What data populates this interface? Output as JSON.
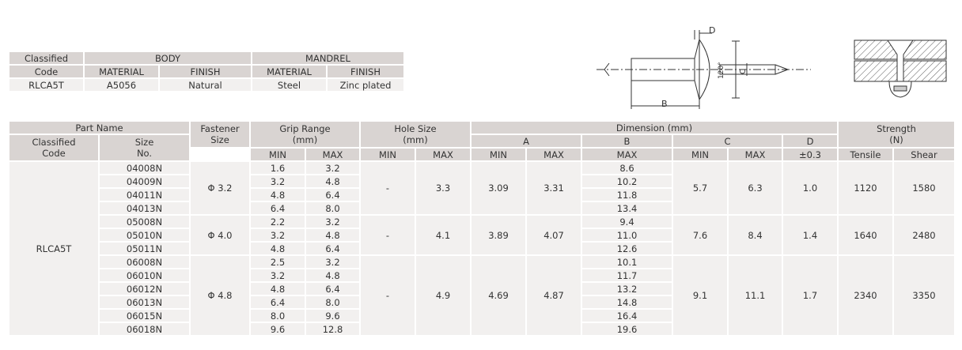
{
  "material_table": {
    "h_classified": "Classified",
    "h_code": "Code",
    "h_body": "BODY",
    "h_mandrel": "MANDREL",
    "h_body_material": "MATERIAL",
    "h_body_finish": "FINISH",
    "h_mandrel_material": "MATERIAL",
    "h_mandrel_finish": "FINISH",
    "code": "RLCA5T",
    "body_material": "A5056",
    "body_finish": "Natural",
    "mandrel_material": "Steel",
    "mandrel_finish": "Zinc plated"
  },
  "diagram": {
    "label_d": "D",
    "label_b": "B",
    "label_c": "C",
    "label_angle": "120°"
  },
  "spec_table": {
    "h_part_name": "Part Name",
    "h_classified_code": "Classified\nCode",
    "h_size_no": "Size\nNo.",
    "h_fastener_size": "Fastener\nSize",
    "h_grip_range": "Grip Range\n(mm)",
    "h_hole_size": "Hole Size\n(mm)",
    "h_dimension": "Dimension (mm)",
    "h_a": "A",
    "h_b": "B",
    "h_c": "C",
    "h_d": "D",
    "h_strength": "Strength\n(N)",
    "h_min": "MIN",
    "h_max": "MAX",
    "h_tol": "±0.3",
    "h_tensile": "Tensile",
    "h_shear": "Shear",
    "code": "RLCA5T",
    "groups": [
      {
        "fastener": "Φ 3.2",
        "hole_min": "-",
        "hole_max": "3.3",
        "a_min": "3.09",
        "a_max": "3.31",
        "c_min": "5.7",
        "c_max": "6.3",
        "d": "1.0",
        "tensile": "1120",
        "shear": "1580",
        "rows": [
          {
            "size": "04008N",
            "grip_min": "1.6",
            "grip_max": "3.2",
            "b": "8.6"
          },
          {
            "size": "04009N",
            "grip_min": "3.2",
            "grip_max": "4.8",
            "b": "10.2"
          },
          {
            "size": "04011N",
            "grip_min": "4.8",
            "grip_max": "6.4",
            "b": "11.8"
          },
          {
            "size": "04013N",
            "grip_min": "6.4",
            "grip_max": "8.0",
            "b": "13.4"
          }
        ]
      },
      {
        "fastener": "Φ 4.0",
        "hole_min": "-",
        "hole_max": "4.1",
        "a_min": "3.89",
        "a_max": "4.07",
        "c_min": "7.6",
        "c_max": "8.4",
        "d": "1.4",
        "tensile": "1640",
        "shear": "2480",
        "rows": [
          {
            "size": "05008N",
            "grip_min": "2.2",
            "grip_max": "3.2",
            "b": "9.4"
          },
          {
            "size": "05010N",
            "grip_min": "3.2",
            "grip_max": "4.8",
            "b": "11.0"
          },
          {
            "size": "05011N",
            "grip_min": "4.8",
            "grip_max": "6.4",
            "b": "12.6"
          }
        ]
      },
      {
        "fastener": "Φ 4.8",
        "hole_min": "-",
        "hole_max": "4.9",
        "a_min": "4.69",
        "a_max": "4.87",
        "c_min": "9.1",
        "c_max": "11.1",
        "d": "1.7",
        "tensile": "2340",
        "shear": "3350",
        "rows": [
          {
            "size": "06008N",
            "grip_min": "2.5",
            "grip_max": "3.2",
            "b": "10.1"
          },
          {
            "size": "06010N",
            "grip_min": "3.2",
            "grip_max": "4.8",
            "b": "11.7"
          },
          {
            "size": "06012N",
            "grip_min": "4.8",
            "grip_max": "6.4",
            "b": "13.2"
          },
          {
            "size": "06013N",
            "grip_min": "6.4",
            "grip_max": "8.0",
            "b": "14.8"
          },
          {
            "size": "06015N",
            "grip_min": "8.0",
            "grip_max": "9.6",
            "b": "16.4"
          },
          {
            "size": "06018N",
            "grip_min": "9.6",
            "grip_max": "12.8",
            "b": "19.6"
          }
        ]
      }
    ]
  }
}
